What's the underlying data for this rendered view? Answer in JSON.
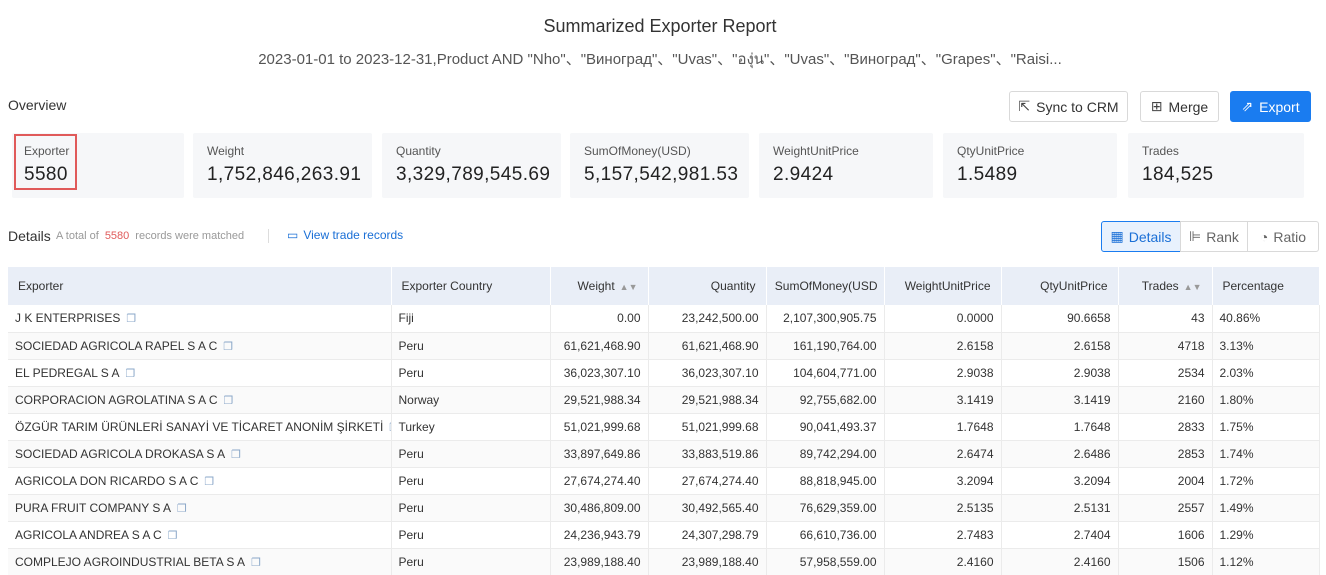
{
  "header": {
    "title": "Summarized Exporter Report",
    "subtitle": "2023-01-01 to 2023-12-31,Product AND \"Nho\"、\"Виноград\"、\"Uvas\"、\"องุ่น\"、\"Uvas\"、\"Виноград\"、\"Grapes\"、\"Raisi..."
  },
  "overview": {
    "label": "Overview",
    "buttons": {
      "sync": "Sync to CRM",
      "merge": "Merge",
      "export": "Export"
    },
    "cards": [
      {
        "label": "Exporter",
        "value": "5580"
      },
      {
        "label": "Weight",
        "value": "1,752,846,263.91"
      },
      {
        "label": "Quantity",
        "value": "3,329,789,545.69"
      },
      {
        "label": "SumOfMoney(USD)",
        "value": "5,157,542,981.53"
      },
      {
        "label": "WeightUnitPrice",
        "value": "2.9424"
      },
      {
        "label": "QtyUnitPrice",
        "value": "1.5489"
      },
      {
        "label": "Trades",
        "value": "184,525"
      }
    ]
  },
  "details": {
    "label": "Details",
    "total_prefix": "A total of",
    "total_count": "5580",
    "total_suffix": "records were matched",
    "view_link": "View trade records",
    "views": {
      "details": "Details",
      "rank": "Rank",
      "ratio": "Ratio"
    }
  },
  "table": {
    "columns": [
      "Exporter",
      "Exporter Country",
      "Weight",
      "Quantity",
      "SumOfMoney(USD",
      "WeightUnitPrice",
      "QtyUnitPrice",
      "Trades",
      "Percentage"
    ],
    "rows": [
      [
        "J K ENTERPRISES",
        "Fiji",
        "0.00",
        "23,242,500.00",
        "2,107,300,905.75",
        "0.0000",
        "90.6658",
        "43",
        "40.86%"
      ],
      [
        "SOCIEDAD AGRICOLA RAPEL S A C",
        "Peru",
        "61,621,468.90",
        "61,621,468.90",
        "161,190,764.00",
        "2.6158",
        "2.6158",
        "4718",
        "3.13%"
      ],
      [
        "EL PEDREGAL S A",
        "Peru",
        "36,023,307.10",
        "36,023,307.10",
        "104,604,771.00",
        "2.9038",
        "2.9038",
        "2534",
        "2.03%"
      ],
      [
        "CORPORACION AGROLATINA S A C",
        "Norway",
        "29,521,988.34",
        "29,521,988.34",
        "92,755,682.00",
        "3.1419",
        "3.1419",
        "2160",
        "1.80%"
      ],
      [
        "ÖZGÜR TARIM ÜRÜNLERİ SANAYİ VE TİCARET ANONİM ŞİRKETİ",
        "Turkey",
        "51,021,999.68",
        "51,021,999.68",
        "90,041,493.37",
        "1.7648",
        "1.7648",
        "2833",
        "1.75%"
      ],
      [
        "SOCIEDAD AGRICOLA DROKASA S A",
        "Peru",
        "33,897,649.86",
        "33,883,519.86",
        "89,742,294.00",
        "2.6474",
        "2.6486",
        "2853",
        "1.74%"
      ],
      [
        "AGRICOLA DON RICARDO S A C",
        "Peru",
        "27,674,274.40",
        "27,674,274.40",
        "88,818,945.00",
        "3.2094",
        "3.2094",
        "2004",
        "1.72%"
      ],
      [
        "PURA FRUIT COMPANY S A",
        "Peru",
        "30,486,809.00",
        "30,492,565.40",
        "76,629,359.00",
        "2.5135",
        "2.5131",
        "2557",
        "1.49%"
      ],
      [
        "AGRICOLA ANDREA S A C",
        "Peru",
        "24,236,943.79",
        "24,307,298.79",
        "66,610,736.00",
        "2.7483",
        "2.7404",
        "1606",
        "1.29%"
      ],
      [
        "COMPLEJO AGROINDUSTRIAL BETA S A",
        "Peru",
        "23,989,188.40",
        "23,989,188.40",
        "57,958,559.00",
        "2.4160",
        "2.4160",
        "1506",
        "1.12%"
      ]
    ]
  }
}
